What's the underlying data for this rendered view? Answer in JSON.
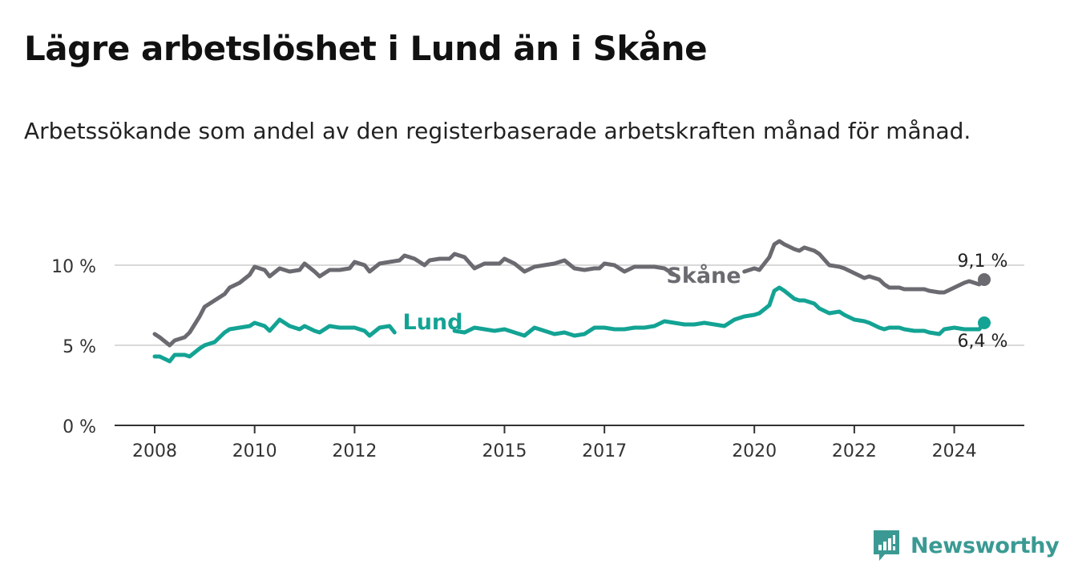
{
  "header": {
    "title": "Lägre arbetslöshet i Lund än i Skåne",
    "subtitle": "Arbetssökande som andel av den registerbaserade arbetskraften månad för månad."
  },
  "brand": {
    "name": "Newsworthy",
    "color": "#3a9a93"
  },
  "colors": {
    "skane": "#6b6a70",
    "lund": "#13a394",
    "grid": "#d9d9d9",
    "axis": "#333333"
  },
  "chart_data": {
    "type": "line",
    "title": "Lägre arbetslöshet i Lund än i Skåne",
    "xlabel": "",
    "ylabel": "",
    "ylim": [
      0,
      10
    ],
    "xlim": [
      2008.0,
      2024.6
    ],
    "xticks": [
      {
        "value": 2008,
        "label": "2008"
      },
      {
        "value": 2010,
        "label": "2010"
      },
      {
        "value": 2012,
        "label": "2012"
      },
      {
        "value": 2015,
        "label": "2015"
      },
      {
        "value": 2017,
        "label": "2017"
      },
      {
        "value": 2020,
        "label": "2020"
      },
      {
        "value": 2022,
        "label": "2022"
      },
      {
        "value": 2024,
        "label": "2024"
      }
    ],
    "yticks": [
      {
        "value": 0,
        "label": "0 %"
      },
      {
        "value": 5,
        "label": "5 %"
      },
      {
        "value": 10,
        "label": "10 %"
      }
    ],
    "series": [
      {
        "name": "Skåne",
        "color": "#6b6a70",
        "end_label": "9,1 %",
        "points": [
          [
            2008.0,
            5.7
          ],
          [
            2008.1,
            5.5
          ],
          [
            2008.3,
            5.0
          ],
          [
            2008.4,
            5.3
          ],
          [
            2008.6,
            5.5
          ],
          [
            2008.7,
            5.8
          ],
          [
            2008.9,
            6.8
          ],
          [
            2009.0,
            7.4
          ],
          [
            2009.2,
            7.8
          ],
          [
            2009.4,
            8.2
          ],
          [
            2009.5,
            8.6
          ],
          [
            2009.7,
            8.9
          ],
          [
            2009.9,
            9.4
          ],
          [
            2010.0,
            9.9
          ],
          [
            2010.2,
            9.7
          ],
          [
            2010.3,
            9.3
          ],
          [
            2010.5,
            9.8
          ],
          [
            2010.7,
            9.6
          ],
          [
            2010.9,
            9.7
          ],
          [
            2011.0,
            10.1
          ],
          [
            2011.2,
            9.6
          ],
          [
            2011.3,
            9.3
          ],
          [
            2011.5,
            9.7
          ],
          [
            2011.7,
            9.7
          ],
          [
            2011.9,
            9.8
          ],
          [
            2012.0,
            10.2
          ],
          [
            2012.2,
            10.0
          ],
          [
            2012.3,
            9.6
          ],
          [
            2012.5,
            10.1
          ],
          [
            2012.7,
            10.2
          ],
          [
            2012.9,
            10.3
          ],
          [
            2013.0,
            10.6
          ],
          [
            2013.2,
            10.4
          ],
          [
            2013.4,
            10.0
          ],
          [
            2013.5,
            10.3
          ],
          [
            2013.7,
            10.4
          ],
          [
            2013.9,
            10.4
          ],
          [
            2014.0,
            10.7
          ],
          [
            2014.2,
            10.5
          ],
          [
            2014.4,
            9.8
          ],
          [
            2014.6,
            10.1
          ],
          [
            2014.8,
            10.1
          ],
          [
            2014.9,
            10.1
          ],
          [
            2015.0,
            10.4
          ],
          [
            2015.2,
            10.1
          ],
          [
            2015.4,
            9.6
          ],
          [
            2015.6,
            9.9
          ],
          [
            2015.8,
            10.0
          ],
          [
            2016.0,
            10.1
          ],
          [
            2016.2,
            10.3
          ],
          [
            2016.4,
            9.8
          ],
          [
            2016.6,
            9.7
          ],
          [
            2016.8,
            9.8
          ],
          [
            2016.9,
            9.8
          ],
          [
            2017.0,
            10.1
          ],
          [
            2017.2,
            10.0
          ],
          [
            2017.4,
            9.6
          ],
          [
            2017.6,
            9.9
          ],
          [
            2017.8,
            9.9
          ],
          [
            2018.0,
            9.9
          ],
          [
            2018.2,
            9.8
          ],
          [
            2018.4,
            9.4
          ]
        ],
        "points_after_gap": [
          [
            2019.8,
            9.6
          ],
          [
            2020.0,
            9.8
          ],
          [
            2020.1,
            9.7
          ],
          [
            2020.3,
            10.5
          ],
          [
            2020.4,
            11.3
          ],
          [
            2020.5,
            11.5
          ],
          [
            2020.6,
            11.3
          ],
          [
            2020.8,
            11.0
          ],
          [
            2020.9,
            10.9
          ],
          [
            2021.0,
            11.1
          ],
          [
            2021.2,
            10.9
          ],
          [
            2021.3,
            10.7
          ],
          [
            2021.5,
            10.0
          ],
          [
            2021.7,
            9.9
          ],
          [
            2021.8,
            9.8
          ],
          [
            2022.0,
            9.5
          ],
          [
            2022.2,
            9.2
          ],
          [
            2022.3,
            9.3
          ],
          [
            2022.5,
            9.1
          ],
          [
            2022.6,
            8.8
          ],
          [
            2022.7,
            8.6
          ],
          [
            2022.9,
            8.6
          ],
          [
            2023.0,
            8.5
          ],
          [
            2023.2,
            8.5
          ],
          [
            2023.4,
            8.5
          ],
          [
            2023.5,
            8.4
          ],
          [
            2023.7,
            8.3
          ],
          [
            2023.8,
            8.3
          ],
          [
            2024.0,
            8.6
          ],
          [
            2024.2,
            8.9
          ],
          [
            2024.3,
            9.0
          ],
          [
            2024.5,
            8.8
          ],
          [
            2024.6,
            9.1
          ]
        ]
      },
      {
        "name": "Lund",
        "color": "#13a394",
        "end_label": "6,4 %",
        "points": [
          [
            2008.0,
            4.3
          ],
          [
            2008.1,
            4.3
          ],
          [
            2008.3,
            4.0
          ],
          [
            2008.4,
            4.4
          ],
          [
            2008.6,
            4.4
          ],
          [
            2008.7,
            4.3
          ],
          [
            2008.9,
            4.8
          ],
          [
            2009.0,
            5.0
          ],
          [
            2009.2,
            5.2
          ],
          [
            2009.4,
            5.8
          ],
          [
            2009.5,
            6.0
          ],
          [
            2009.7,
            6.1
          ],
          [
            2009.9,
            6.2
          ],
          [
            2010.0,
            6.4
          ],
          [
            2010.2,
            6.2
          ],
          [
            2010.3,
            5.9
          ],
          [
            2010.5,
            6.6
          ],
          [
            2010.7,
            6.2
          ],
          [
            2010.9,
            6.0
          ],
          [
            2011.0,
            6.2
          ],
          [
            2011.2,
            5.9
          ],
          [
            2011.3,
            5.8
          ],
          [
            2011.5,
            6.2
          ],
          [
            2011.7,
            6.1
          ],
          [
            2011.9,
            6.1
          ],
          [
            2012.0,
            6.1
          ],
          [
            2012.2,
            5.9
          ],
          [
            2012.3,
            5.6
          ],
          [
            2012.5,
            6.1
          ],
          [
            2012.7,
            6.2
          ],
          [
            2012.8,
            5.8
          ]
        ],
        "points_after_gap": [
          [
            2014.0,
            5.9
          ],
          [
            2014.2,
            5.8
          ],
          [
            2014.4,
            6.1
          ],
          [
            2014.6,
            6.0
          ],
          [
            2014.8,
            5.9
          ],
          [
            2015.0,
            6.0
          ],
          [
            2015.2,
            5.8
          ],
          [
            2015.4,
            5.6
          ],
          [
            2015.6,
            6.1
          ],
          [
            2015.8,
            5.9
          ],
          [
            2016.0,
            5.7
          ],
          [
            2016.2,
            5.8
          ],
          [
            2016.4,
            5.6
          ],
          [
            2016.6,
            5.7
          ],
          [
            2016.8,
            6.1
          ],
          [
            2017.0,
            6.1
          ],
          [
            2017.2,
            6.0
          ],
          [
            2017.4,
            6.0
          ],
          [
            2017.6,
            6.1
          ],
          [
            2017.8,
            6.1
          ],
          [
            2018.0,
            6.2
          ],
          [
            2018.2,
            6.5
          ],
          [
            2018.4,
            6.4
          ],
          [
            2018.6,
            6.3
          ],
          [
            2018.8,
            6.3
          ],
          [
            2019.0,
            6.4
          ],
          [
            2019.2,
            6.3
          ],
          [
            2019.4,
            6.2
          ],
          [
            2019.6,
            6.6
          ],
          [
            2019.8,
            6.8
          ],
          [
            2020.0,
            6.9
          ],
          [
            2020.1,
            7.0
          ],
          [
            2020.3,
            7.5
          ],
          [
            2020.4,
            8.4
          ],
          [
            2020.5,
            8.6
          ],
          [
            2020.6,
            8.4
          ],
          [
            2020.8,
            7.9
          ],
          [
            2020.9,
            7.8
          ],
          [
            2021.0,
            7.8
          ],
          [
            2021.2,
            7.6
          ],
          [
            2021.3,
            7.3
          ],
          [
            2021.5,
            7.0
          ],
          [
            2021.7,
            7.1
          ],
          [
            2021.8,
            6.9
          ],
          [
            2022.0,
            6.6
          ],
          [
            2022.2,
            6.5
          ],
          [
            2022.3,
            6.4
          ],
          [
            2022.5,
            6.1
          ],
          [
            2022.6,
            6.0
          ],
          [
            2022.7,
            6.1
          ],
          [
            2022.9,
            6.1
          ],
          [
            2023.0,
            6.0
          ],
          [
            2023.2,
            5.9
          ],
          [
            2023.4,
            5.9
          ],
          [
            2023.5,
            5.8
          ],
          [
            2023.7,
            5.7
          ],
          [
            2023.8,
            6.0
          ],
          [
            2024.0,
            6.1
          ],
          [
            2024.2,
            6.0
          ],
          [
            2024.3,
            6.0
          ],
          [
            2024.5,
            6.0
          ],
          [
            2024.6,
            6.4
          ]
        ]
      }
    ]
  }
}
